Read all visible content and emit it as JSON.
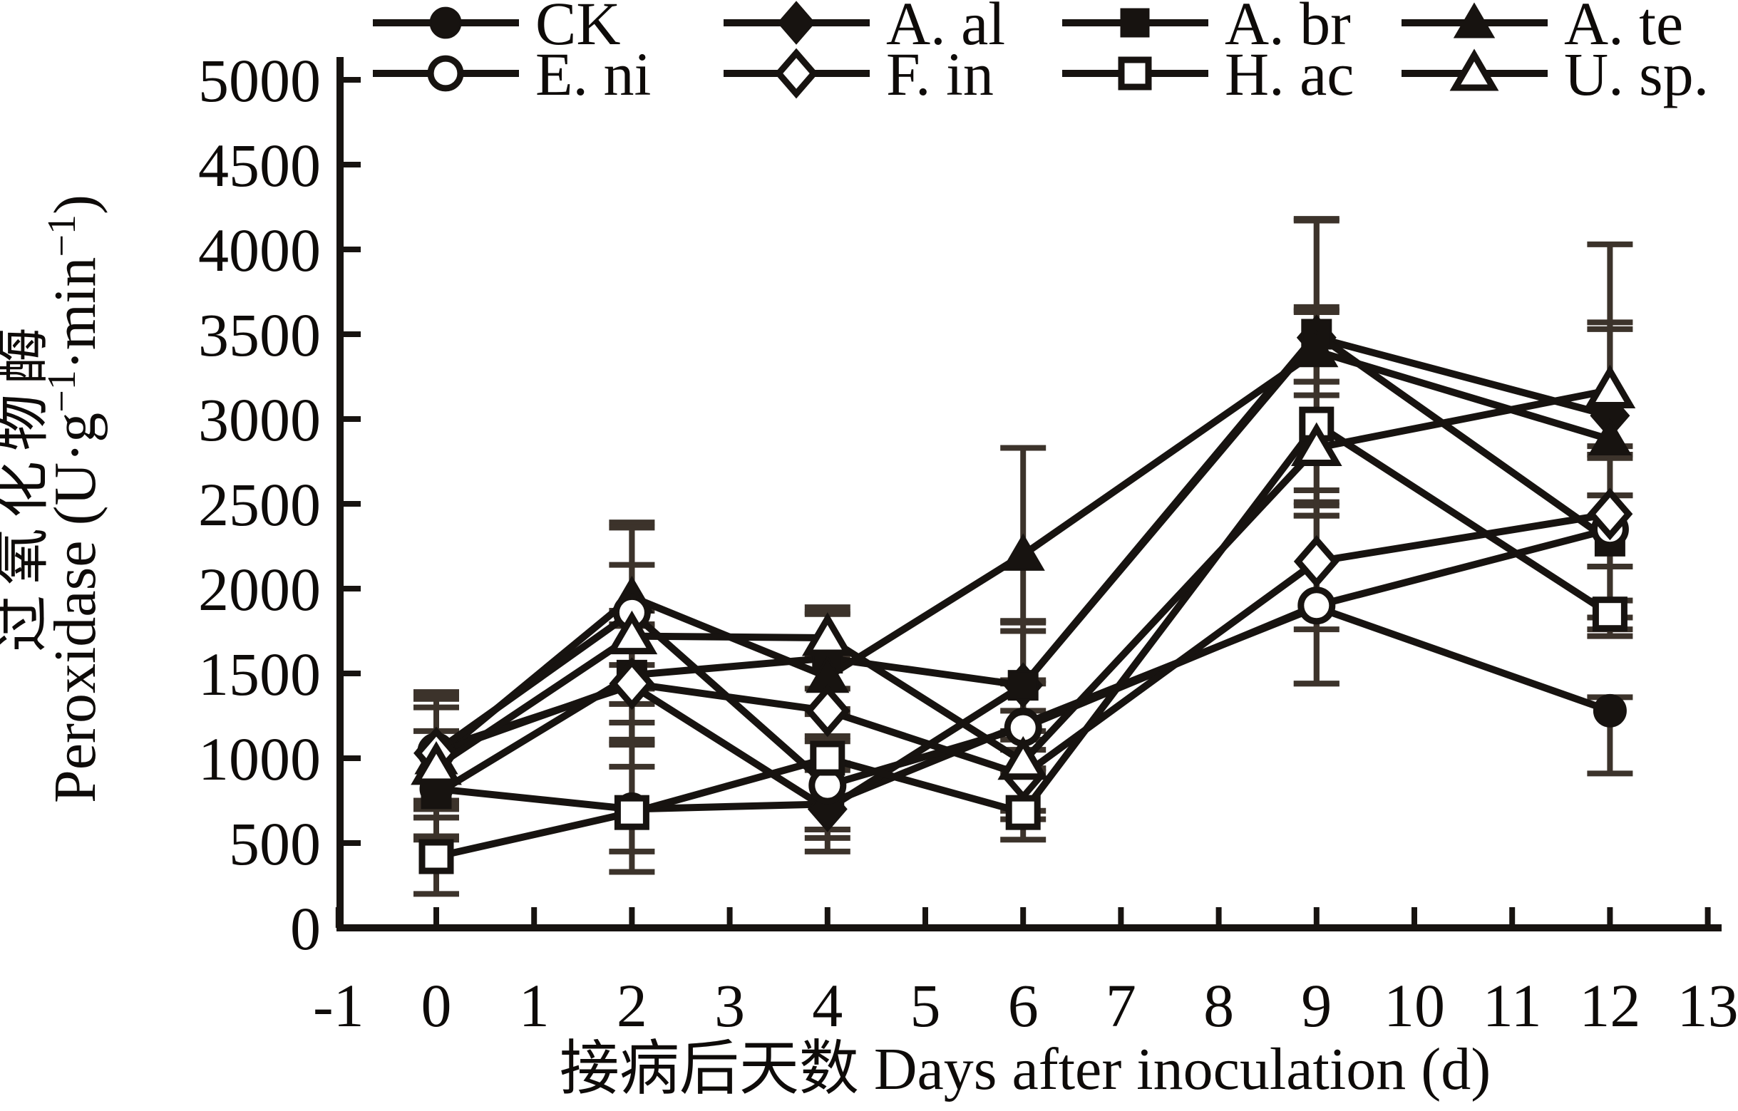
{
  "figure": {
    "background": "#ffffff",
    "ink_color": "#171310",
    "error_bar_color": "#3c332b",
    "open_marker_fill": "#ffffff"
  },
  "chart_data": {
    "type": "line",
    "title": "",
    "xlabel": "接病后天数 Days after inoculation (d)",
    "ylabel_cn": "过氧化物酶",
    "ylabel_en_segments": [
      {
        "text": "Peroxidase (U·g",
        "sup": false
      },
      {
        "text": "−1",
        "sup": true
      },
      {
        "text": "·min",
        "sup": false
      },
      {
        "text": "−1",
        "sup": true
      },
      {
        "text": ")",
        "sup": false
      }
    ],
    "x": [
      0,
      2,
      4,
      6,
      9,
      12
    ],
    "x_ticks": [
      -1,
      0,
      1,
      2,
      3,
      4,
      5,
      6,
      7,
      8,
      9,
      10,
      11,
      12,
      13
    ],
    "y_ticks": [
      0,
      500,
      1000,
      1500,
      2000,
      2500,
      3000,
      3500,
      4000,
      4500,
      5000
    ],
    "xlim": [
      -1,
      13
    ],
    "ylim": [
      0,
      5000
    ],
    "grid": false,
    "legend_position": "top",
    "legend_rows": 2,
    "series": [
      {
        "name": "CK",
        "marker": "circle",
        "fill": "filled",
        "values": [
          820,
          700,
          730,
          1200,
          1890,
          1280
        ],
        "err_up": [
          340,
          250,
          200,
          260,
          600,
          80
        ],
        "err_down": [
          300,
          250,
          200,
          260,
          450,
          370
        ]
      },
      {
        "name": "A. al",
        "marker": "diamond",
        "fill": "filled",
        "values": [
          1050,
          1430,
          700,
          1430,
          3480,
          3020
        ],
        "err_up": [
          330,
          350,
          250,
          320,
          690,
          550
        ],
        "err_down": [
          300,
          350,
          250,
          320,
          260,
          230
        ]
      },
      {
        "name": "A. br",
        "marker": "square",
        "fill": "filled",
        "values": [
          790,
          1490,
          1590,
          1430,
          3500,
          2280
        ],
        "err_up": [
          600,
          380,
          300,
          380,
          680,
          270
        ],
        "err_down": [
          250,
          380,
          300,
          380,
          280,
          450
        ]
      },
      {
        "name": "A. te",
        "marker": "triangle",
        "fill": "filled",
        "values": [
          1000,
          1950,
          1480,
          2200,
          3400,
          2880
        ],
        "err_up": [
          350,
          440,
          380,
          630,
          260,
          650
        ],
        "err_down": [
          300,
          400,
          350,
          400,
          260,
          110
        ]
      },
      {
        "name": "E. ni",
        "marker": "circle",
        "fill": "open",
        "values": [
          1040,
          1860,
          840,
          1180,
          1900,
          2350
        ],
        "err_up": [
          330,
          500,
          260,
          260,
          610,
          200
        ],
        "err_down": [
          300,
          450,
          260,
          260,
          460,
          630
        ]
      },
      {
        "name": "F. in",
        "marker": "diamond",
        "fill": "open",
        "values": [
          1030,
          1440,
          1280,
          900,
          2160,
          2440
        ],
        "err_up": [
          340,
          350,
          310,
          260,
          420,
          400
        ],
        "err_down": [
          300,
          350,
          310,
          260,
          400,
          310
        ]
      },
      {
        "name": "H. ac",
        "marker": "square",
        "fill": "open",
        "values": [
          420,
          680,
          1000,
          680,
          2970,
          1850
        ],
        "err_up": [
          230,
          530,
          260,
          260,
          660,
          80
        ],
        "err_down": [
          220,
          350,
          420,
          160,
          540,
          90
        ]
      },
      {
        "name": "U. sp.",
        "marker": "triangle",
        "fill": "open",
        "values": [
          950,
          1720,
          1710,
          980,
          2830,
          3170
        ],
        "err_up": [
          350,
          420,
          140,
          300,
          810,
          860
        ],
        "err_down": [
          300,
          400,
          300,
          290,
          400,
          380
        ]
      }
    ]
  }
}
